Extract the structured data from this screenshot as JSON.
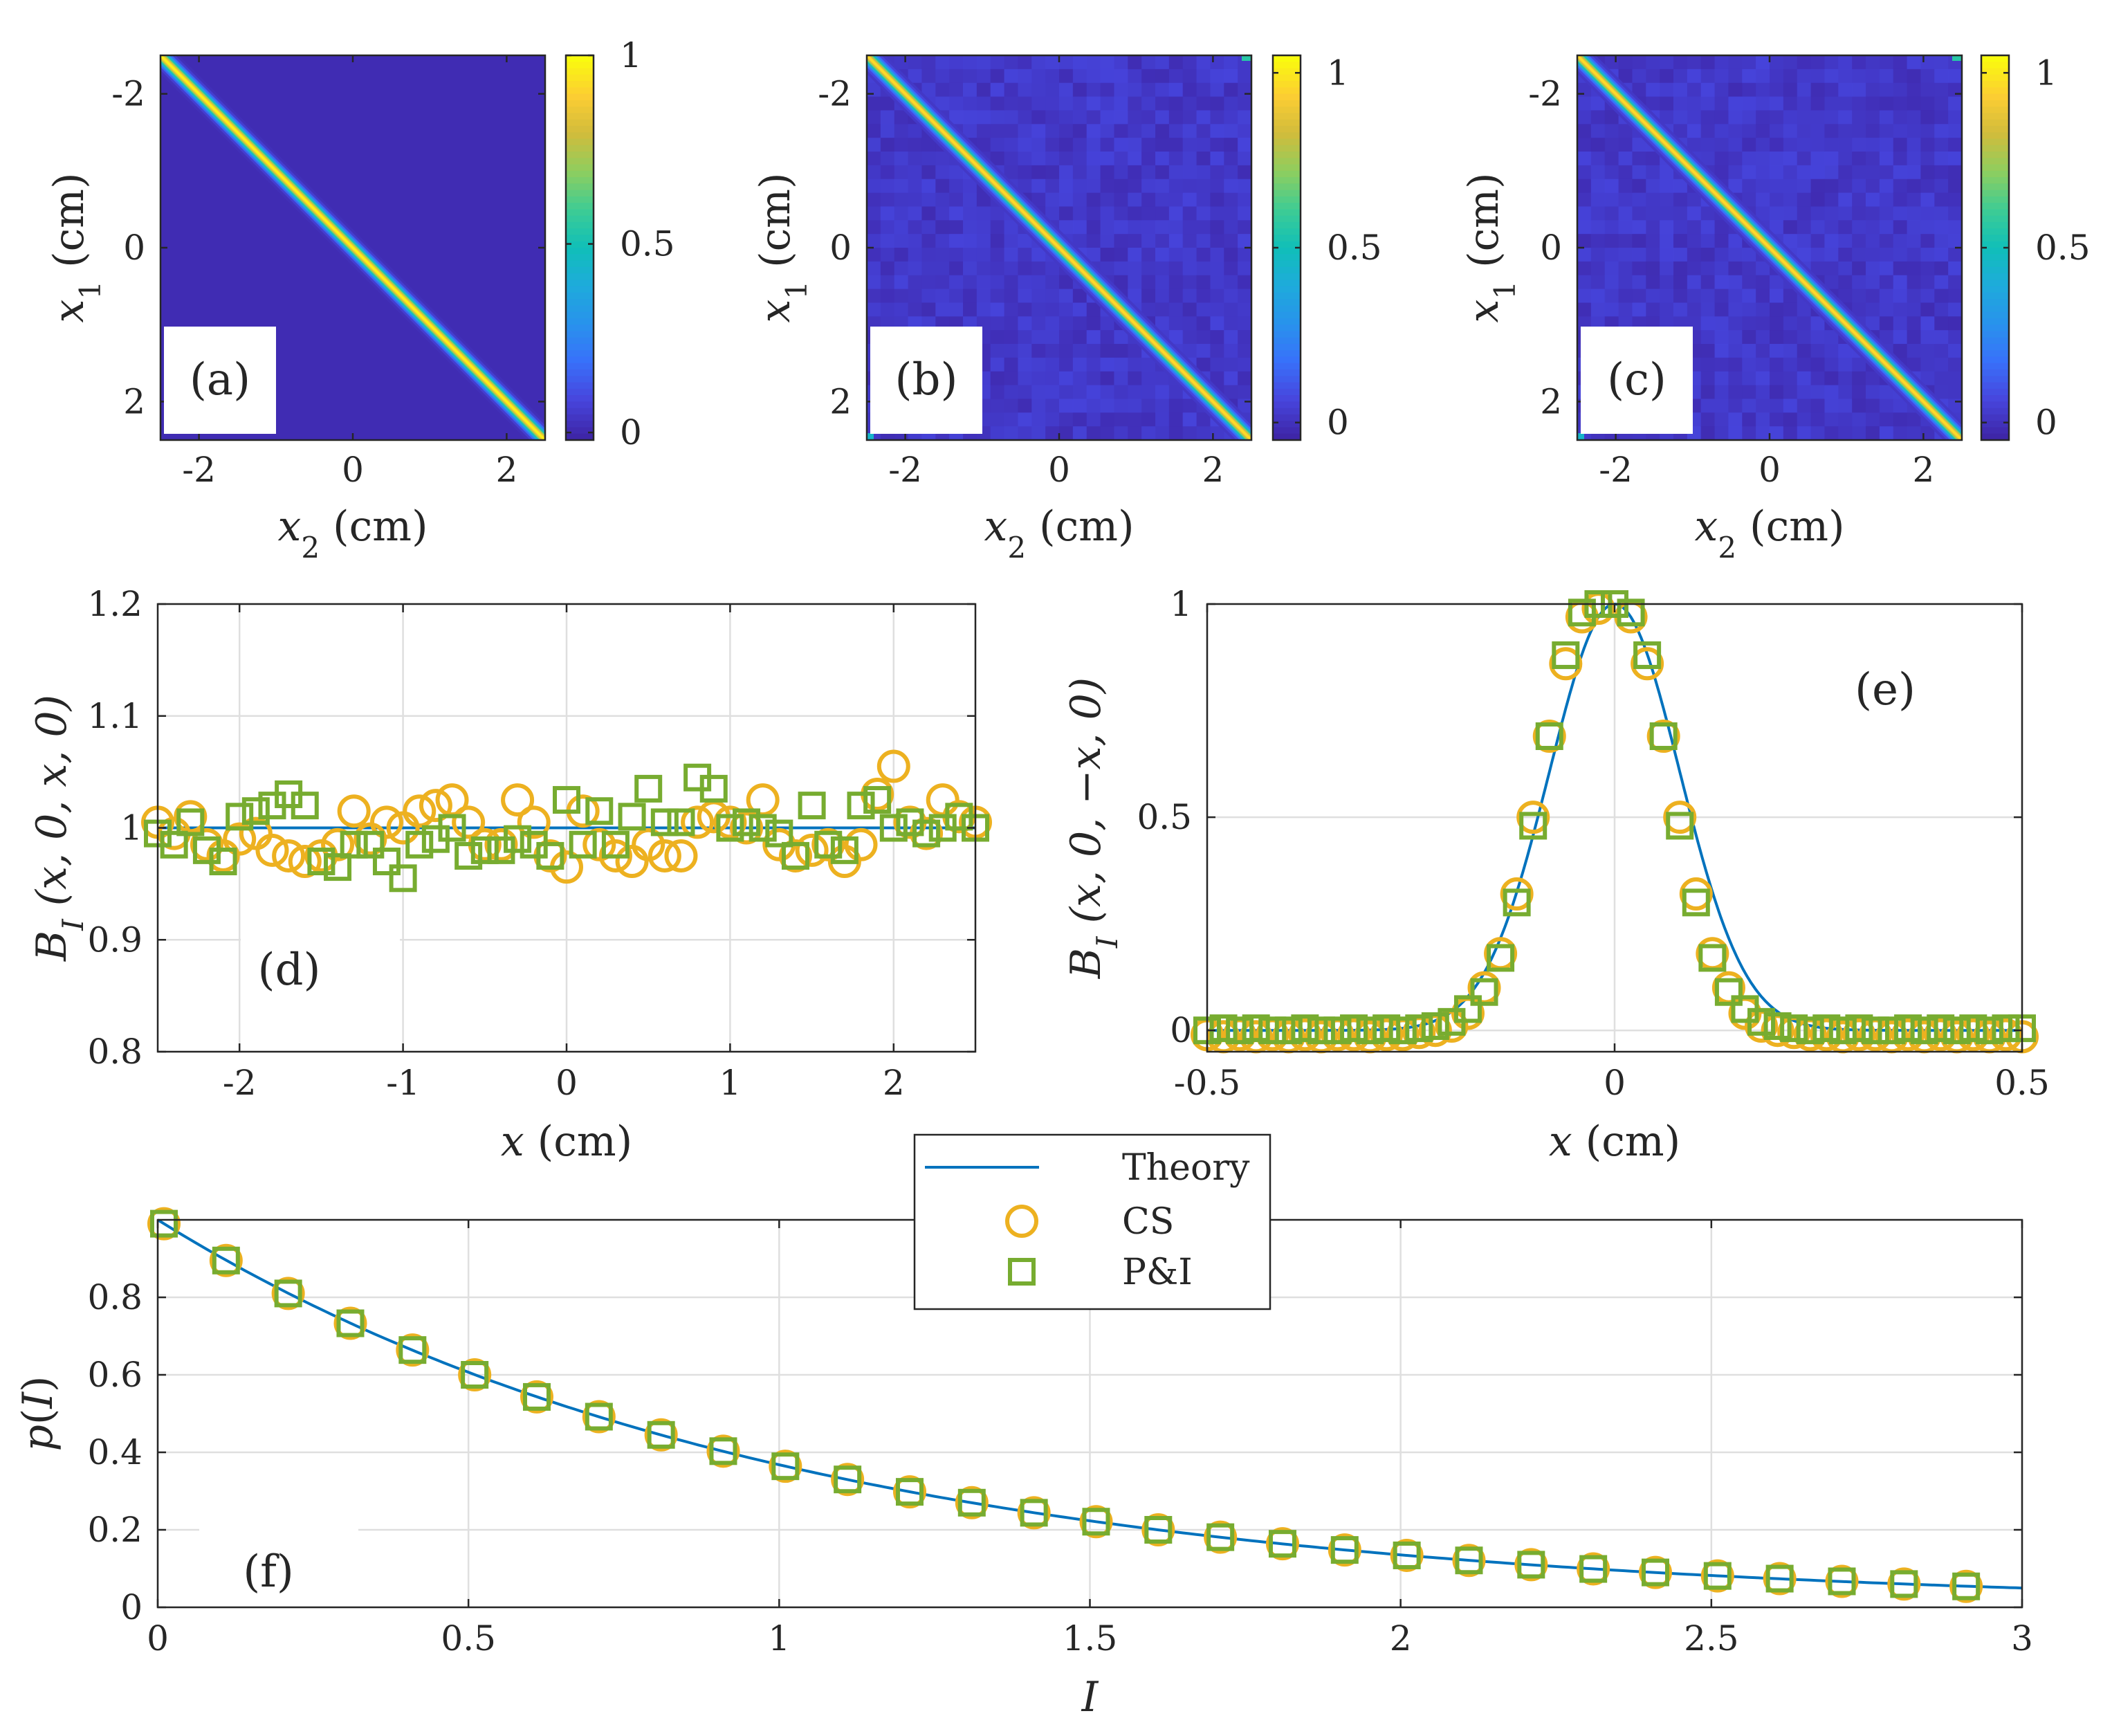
{
  "figure": {
    "panel_count": 6
  },
  "colors": {
    "theory": "#0072BD",
    "cs": "#EDB120",
    "pi": "#77AC30",
    "axis": "#262626",
    "grid": "#DFDFDF",
    "map_low": "#3E26A8",
    "map_high": "#F9FB0E"
  },
  "chart_data": [
    {
      "id": "a",
      "type": "heatmap",
      "panel_label": "(a)",
      "xlabel": "x2 (cm)",
      "ylabel": "x1 (cm)",
      "xlabel_var": "x",
      "xlabel_sub": "2",
      "xlabel_unit": "(cm)",
      "ylabel_var": "x",
      "ylabel_sub": "1",
      "ylabel_unit": "(cm)",
      "xlim": [
        -2.5,
        2.5
      ],
      "ylim": [
        -2.5,
        2.5
      ],
      "y_reversed": true,
      "xticks": [
        -2,
        0,
        2
      ],
      "xtick_labels": [
        "-2",
        "0",
        "2"
      ],
      "yticks": [
        -2,
        0,
        2
      ],
      "ytick_labels": [
        "-2",
        "0",
        "2"
      ],
      "colorbar": {
        "clim": [
          -0.02,
          1.0
        ],
        "ticks": [
          0,
          0.5,
          1
        ],
        "tick_labels": [
          "0",
          "0.5",
          "1"
        ]
      },
      "description_of_data": "Gaussian ridge along main diagonal x1 = x2, peak value 1, width ~0.08 cm",
      "ridge_sigma_cm": 0.08,
      "noise": false
    },
    {
      "id": "b",
      "type": "heatmap",
      "panel_label": "(b)",
      "xlabel": "x2 (cm)",
      "ylabel": "x1 (cm)",
      "xlabel_var": "x",
      "xlabel_sub": "2",
      "xlabel_unit": "(cm)",
      "ylabel_var": "x",
      "ylabel_sub": "1",
      "ylabel_unit": "(cm)",
      "xlim": [
        -2.5,
        2.5
      ],
      "ylim": [
        -2.5,
        2.5
      ],
      "y_reversed": true,
      "xticks": [
        -2,
        0,
        2
      ],
      "xtick_labels": [
        "-2",
        "0",
        "2"
      ],
      "yticks": [
        -2,
        0,
        2
      ],
      "ytick_labels": [
        "-2",
        "0",
        "2"
      ],
      "colorbar": {
        "clim": [
          -0.05,
          1.05
        ],
        "ticks": [
          0,
          0.5,
          1
        ],
        "tick_labels": [
          "0",
          "0.5",
          "1"
        ]
      },
      "ridge_sigma_cm": 0.08,
      "noise": true
    },
    {
      "id": "c",
      "type": "heatmap",
      "panel_label": "(c)",
      "xlabel": "x2 (cm)",
      "ylabel": "x1 (cm)",
      "xlabel_var": "x",
      "xlabel_sub": "2",
      "xlabel_unit": "(cm)",
      "ylabel_var": "x",
      "ylabel_sub": "1",
      "ylabel_unit": "(cm)",
      "xlim": [
        -2.5,
        2.5
      ],
      "ylim": [
        -2.5,
        2.5
      ],
      "y_reversed": true,
      "xticks": [
        -2,
        0,
        2
      ],
      "xtick_labels": [
        "-2",
        "0",
        "2"
      ],
      "yticks": [
        -2,
        0,
        2
      ],
      "ytick_labels": [
        "-2",
        "0",
        "2"
      ],
      "colorbar": {
        "clim": [
          -0.05,
          1.05
        ],
        "ticks": [
          0,
          0.5,
          1
        ],
        "tick_labels": [
          "0",
          "0.5",
          "1"
        ]
      },
      "ridge_sigma_cm": 0.08,
      "noise": true
    },
    {
      "id": "d",
      "type": "scatter",
      "panel_label": "(d)",
      "xlabel": "x (cm)",
      "ylabel": "BI(x,0,x,0)",
      "xlabel_var": "x",
      "xlabel_unit": "(cm)",
      "ylabel_main": "B",
      "ylabel_sub": "I",
      "ylabel_args": "(x, 0, x, 0)",
      "xlim": [
        -2.5,
        2.5
      ],
      "ylim": [
        0.8,
        1.2
      ],
      "grid": true,
      "xticks": [
        -2,
        -1,
        0,
        1,
        2
      ],
      "xtick_labels": [
        "-2",
        "-1",
        "0",
        "1",
        "2"
      ],
      "yticks": [
        0.8,
        0.9,
        1.0,
        1.1,
        1.2
      ],
      "ytick_labels": [
        "0.8",
        "0.9",
        "1",
        "1.1",
        "1.2"
      ],
      "series": [
        {
          "name": "Theory",
          "kind": "line",
          "x": [
            -2.5,
            2.5
          ],
          "y": [
            1.0,
            1.0
          ]
        },
        {
          "name": "CS",
          "kind": "circle",
          "x": [
            -2.5,
            -2.4,
            -2.3,
            -2.2,
            -2.1,
            -2.0,
            -1.9,
            -1.8,
            -1.7,
            -1.6,
            -1.5,
            -1.4,
            -1.3,
            -1.2,
            -1.1,
            -1.0,
            -0.9,
            -0.8,
            -0.7,
            -0.6,
            -0.5,
            -0.4,
            -0.3,
            -0.2,
            -0.1,
            0.0,
            0.1,
            0.2,
            0.3,
            0.4,
            0.5,
            0.6,
            0.7,
            0.8,
            0.9,
            1.0,
            1.1,
            1.2,
            1.3,
            1.4,
            1.5,
            1.6,
            1.7,
            1.8,
            1.9,
            2.0,
            2.1,
            2.2,
            2.3,
            2.4,
            2.5
          ],
          "y": [
            1.005,
            0.995,
            1.01,
            0.985,
            0.975,
            0.99,
            0.995,
            0.98,
            0.975,
            0.97,
            0.975,
            0.985,
            1.015,
            0.99,
            1.005,
            1.0,
            1.015,
            1.02,
            1.025,
            1.005,
            0.985,
            0.985,
            1.025,
            1.005,
            0.975,
            0.965,
            1.015,
            0.985,
            0.975,
            0.97,
            0.985,
            0.975,
            0.975,
            1.005,
            1.01,
            1.005,
            1.0,
            1.025,
            0.985,
            0.975,
            0.98,
            0.985,
            0.97,
            0.985,
            1.03,
            1.055,
            1.005,
            0.995,
            1.025,
            1.01,
            1.005
          ]
        },
        {
          "name": "P&I",
          "kind": "square",
          "x": [
            -2.5,
            -2.4,
            -2.3,
            -2.2,
            -2.1,
            -2.0,
            -1.9,
            -1.8,
            -1.7,
            -1.6,
            -1.5,
            -1.4,
            -1.3,
            -1.2,
            -1.1,
            -1.0,
            -0.9,
            -0.8,
            -0.7,
            -0.6,
            -0.5,
            -0.4,
            -0.3,
            -0.2,
            -0.1,
            0.0,
            0.1,
            0.2,
            0.3,
            0.4,
            0.5,
            0.6,
            0.7,
            0.8,
            0.9,
            1.0,
            1.1,
            1.2,
            1.3,
            1.4,
            1.5,
            1.6,
            1.7,
            1.8,
            1.9,
            2.0,
            2.1,
            2.2,
            2.3,
            2.4,
            2.5
          ],
          "y": [
            0.995,
            0.985,
            1.005,
            0.98,
            0.97,
            1.01,
            1.015,
            1.02,
            1.03,
            1.02,
            0.97,
            0.965,
            0.985,
            0.985,
            0.97,
            0.955,
            0.985,
            0.99,
            1.0,
            0.975,
            0.98,
            0.98,
            0.99,
            0.985,
            0.975,
            1.025,
            0.985,
            1.015,
            0.985,
            1.01,
            1.035,
            1.005,
            1.005,
            1.045,
            1.035,
            1.0,
            1.005,
            1.0,
            0.995,
            0.975,
            1.02,
            0.985,
            0.98,
            1.02,
            1.025,
            1.0,
            1.005,
            0.995,
            1.0,
            1.01,
            1.0
          ]
        }
      ]
    },
    {
      "id": "e",
      "type": "line",
      "panel_label": "(e)",
      "xlabel": "x (cm)",
      "ylabel": "BI(x,0,-x,0)",
      "xlabel_var": "x",
      "xlabel_unit": "(cm)",
      "ylabel_main": "B",
      "ylabel_sub": "I",
      "ylabel_args": "(x, 0, −x, 0)",
      "xlim": [
        -0.5,
        0.5
      ],
      "ylim": [
        -0.05,
        1.0
      ],
      "grid": true,
      "xticks": [
        -0.5,
        0,
        0.5
      ],
      "xtick_labels": [
        "-0.5",
        "0",
        "0.5"
      ],
      "yticks": [
        0,
        0.5,
        1.0
      ],
      "ytick_labels": [
        "0",
        "0.5",
        "1"
      ],
      "theory_sigma_cm": 0.08,
      "series": [
        {
          "name": "Theory",
          "kind": "line",
          "function": "exp(-x^2/(2*0.08^2))"
        },
        {
          "name": "CS",
          "kind": "circle",
          "x": [
            -0.5,
            -0.48,
            -0.46,
            -0.44,
            -0.42,
            -0.4,
            -0.38,
            -0.36,
            -0.34,
            -0.32,
            -0.3,
            -0.28,
            -0.26,
            -0.24,
            -0.22,
            -0.2,
            -0.18,
            -0.16,
            -0.14,
            -0.12,
            -0.1,
            -0.08,
            -0.06,
            -0.04,
            -0.02,
            0.02,
            0.04,
            0.06,
            0.08,
            0.1,
            0.12,
            0.14,
            0.16,
            0.18,
            0.2,
            0.22,
            0.24,
            0.26,
            0.28,
            0.3,
            0.32,
            0.34,
            0.36,
            0.38,
            0.4,
            0.42,
            0.44,
            0.46,
            0.48,
            0.5
          ],
          "y": [
            -0.01,
            -0.015,
            -0.01,
            -0.015,
            -0.01,
            -0.015,
            -0.01,
            -0.015,
            -0.01,
            -0.01,
            -0.015,
            -0.01,
            -0.01,
            -0.005,
            0.0,
            0.01,
            0.04,
            0.1,
            0.18,
            0.32,
            0.5,
            0.69,
            0.86,
            0.97,
            0.99,
            0.97,
            0.86,
            0.69,
            0.5,
            0.32,
            0.18,
            0.1,
            0.04,
            0.01,
            0.0,
            -0.005,
            -0.01,
            -0.01,
            -0.015,
            -0.01,
            -0.01,
            -0.015,
            -0.01,
            -0.015,
            -0.01,
            -0.015,
            -0.01,
            -0.015,
            -0.01,
            -0.015
          ]
        },
        {
          "name": "P&I",
          "kind": "square",
          "x": [
            -0.5,
            -0.48,
            -0.46,
            -0.44,
            -0.42,
            -0.4,
            -0.38,
            -0.36,
            -0.34,
            -0.32,
            -0.3,
            -0.28,
            -0.26,
            -0.24,
            -0.22,
            -0.2,
            -0.18,
            -0.16,
            -0.14,
            -0.12,
            -0.1,
            -0.08,
            -0.06,
            -0.04,
            -0.02,
            0.0,
            0.02,
            0.04,
            0.06,
            0.08,
            0.1,
            0.12,
            0.14,
            0.16,
            0.18,
            0.2,
            0.22,
            0.24,
            0.26,
            0.28,
            0.3,
            0.32,
            0.34,
            0.36,
            0.38,
            0.4,
            0.42,
            0.44,
            0.46,
            0.48,
            0.5
          ],
          "y": [
            0.0,
            0.005,
            0.0,
            0.005,
            0.0,
            0.0,
            0.005,
            0.0,
            0.0,
            0.005,
            0.0,
            0.005,
            0.0,
            0.005,
            0.01,
            0.02,
            0.05,
            0.09,
            0.17,
            0.3,
            0.48,
            0.69,
            0.88,
            0.98,
            1.0,
            1.0,
            0.98,
            0.88,
            0.69,
            0.48,
            0.3,
            0.17,
            0.09,
            0.05,
            0.02,
            0.01,
            0.005,
            0.0,
            0.005,
            0.0,
            0.005,
            0.0,
            0.0,
            0.005,
            0.0,
            0.005,
            0.0,
            0.005,
            0.0,
            0.005,
            0.005
          ]
        }
      ]
    },
    {
      "id": "f",
      "type": "line",
      "panel_label": "(f)",
      "xlabel": "I",
      "ylabel": "p(I)",
      "xlim": [
        0,
        3
      ],
      "ylim": [
        0,
        1.0
      ],
      "grid": true,
      "xticks": [
        0,
        0.5,
        1,
        1.5,
        2,
        2.5,
        3
      ],
      "xtick_labels": [
        "0",
        "0.5",
        "1",
        "1.5",
        "2",
        "2.5",
        "3"
      ],
      "yticks": [
        0,
        0.2,
        0.4,
        0.6,
        0.8
      ],
      "ytick_labels": [
        "0",
        "0.2",
        "0.4",
        "0.6",
        "0.8"
      ],
      "series": [
        {
          "name": "Theory",
          "kind": "line",
          "function": "exp(-I)"
        },
        {
          "name": "CS",
          "kind": "circle",
          "x": [
            0.01,
            0.11,
            0.21,
            0.31,
            0.41,
            0.51,
            0.61,
            0.71,
            0.81,
            0.91,
            1.01,
            1.11,
            1.21,
            1.31,
            1.41,
            1.51,
            1.61,
            1.71,
            1.81,
            1.91,
            2.01,
            2.11,
            2.21,
            2.31,
            2.41,
            2.51,
            2.61,
            2.71,
            2.81,
            2.91
          ],
          "y": [
            0.99,
            0.895,
            0.81,
            0.733,
            0.664,
            0.6,
            0.543,
            0.492,
            0.445,
            0.403,
            0.364,
            0.33,
            0.298,
            0.27,
            0.244,
            0.221,
            0.2,
            0.181,
            0.164,
            0.148,
            0.134,
            0.121,
            0.11,
            0.099,
            0.09,
            0.081,
            0.074,
            0.067,
            0.06,
            0.054
          ]
        },
        {
          "name": "P&I",
          "kind": "square",
          "x": [
            0.01,
            0.11,
            0.21,
            0.31,
            0.41,
            0.51,
            0.61,
            0.71,
            0.81,
            0.91,
            1.01,
            1.11,
            1.21,
            1.31,
            1.41,
            1.51,
            1.61,
            1.71,
            1.81,
            1.91,
            2.01,
            2.11,
            2.21,
            2.31,
            2.41,
            2.51,
            2.61,
            2.71,
            2.81,
            2.91
          ],
          "y": [
            0.99,
            0.895,
            0.81,
            0.733,
            0.664,
            0.6,
            0.543,
            0.492,
            0.445,
            0.403,
            0.364,
            0.33,
            0.298,
            0.27,
            0.244,
            0.221,
            0.2,
            0.181,
            0.164,
            0.148,
            0.134,
            0.121,
            0.11,
            0.099,
            0.09,
            0.081,
            0.074,
            0.067,
            0.06,
            0.054
          ]
        }
      ]
    }
  ],
  "legend": {
    "entries": [
      "Theory",
      "CS",
      "P&I"
    ]
  }
}
